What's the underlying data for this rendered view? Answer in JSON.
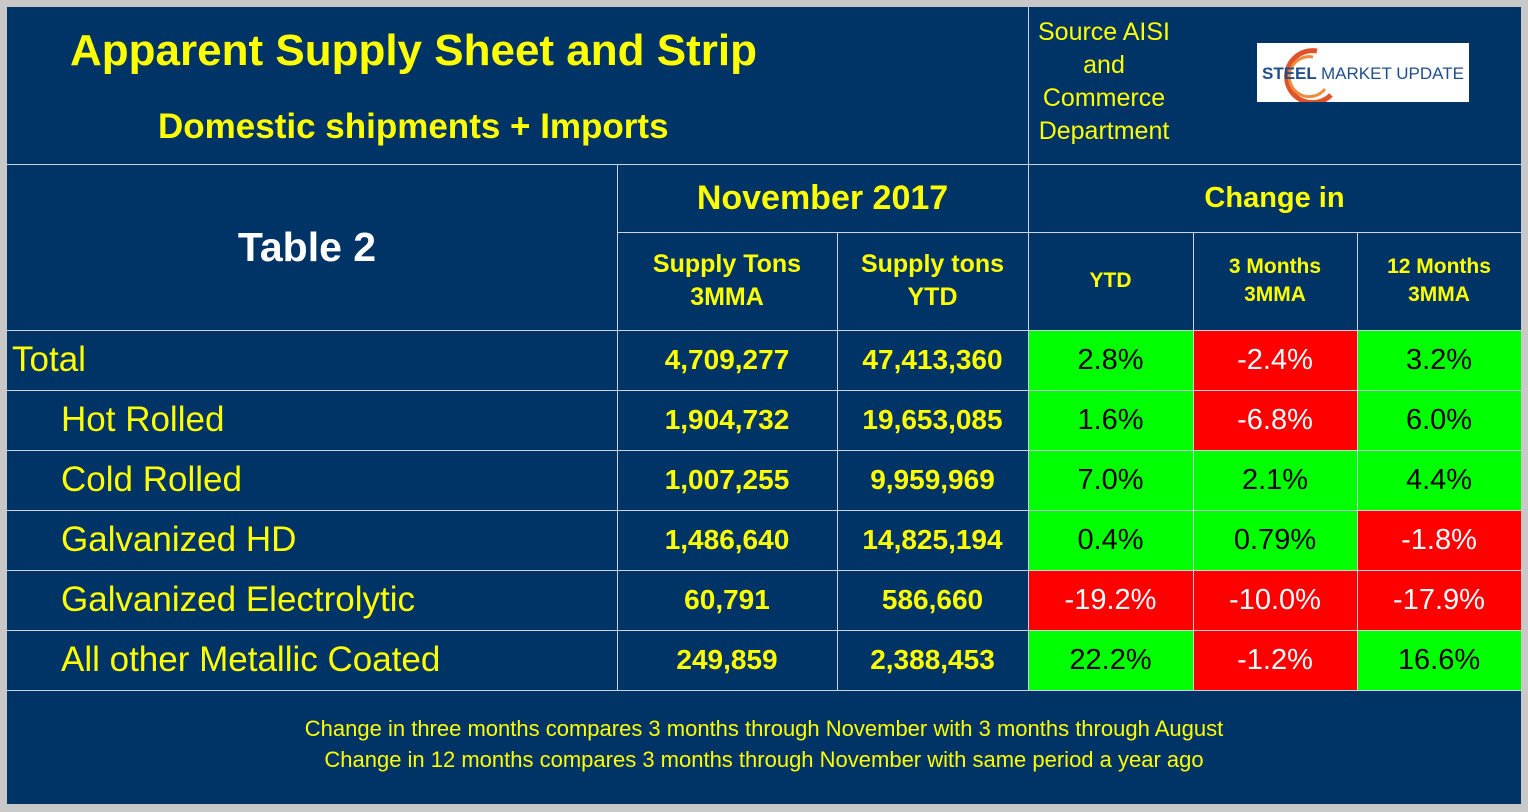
{
  "header": {
    "title": "Apparent Supply Sheet and Strip",
    "subtitle": "Domestic shipments + Imports",
    "source_lines": [
      "Source AISI",
      "and",
      "Commerce",
      "Department"
    ],
    "logo_text_bold": "STEEL",
    "logo_text": "MARKET UPDATE"
  },
  "chart_data": {
    "type": "table",
    "table_label": "Table 2",
    "period_header": "November 2017",
    "change_header": "Change in",
    "columns": [
      {
        "label_line1": "Supply Tons",
        "label_line2": "3MMA"
      },
      {
        "label_line1": "Supply tons",
        "label_line2": "YTD"
      },
      {
        "label_line1": "YTD",
        "label_line2": ""
      },
      {
        "label_line1": "3 Months",
        "label_line2": "3MMA"
      },
      {
        "label_line1": "12 Months",
        "label_line2": "3MMA"
      }
    ],
    "rows": [
      {
        "label": "Total",
        "indent": false,
        "supply_3mma": "4,709,277",
        "supply_ytd": "47,413,360",
        "chg_ytd": "2.8%",
        "chg_3m": "-2.4%",
        "chg_12m": "3.2%",
        "chg_ytd_color": "green",
        "chg_3m_color": "red",
        "chg_12m_color": "green"
      },
      {
        "label": "Hot Rolled",
        "indent": true,
        "supply_3mma": "1,904,732",
        "supply_ytd": "19,653,085",
        "chg_ytd": "1.6%",
        "chg_3m": "-6.8%",
        "chg_12m": "6.0%",
        "chg_ytd_color": "green",
        "chg_3m_color": "red",
        "chg_12m_color": "green"
      },
      {
        "label": "Cold Rolled",
        "indent": true,
        "supply_3mma": "1,007,255",
        "supply_ytd": "9,959,969",
        "chg_ytd": "7.0%",
        "chg_3m": "2.1%",
        "chg_12m": "4.4%",
        "chg_ytd_color": "green",
        "chg_3m_color": "green",
        "chg_12m_color": "green"
      },
      {
        "label": "Galvanized HD",
        "indent": true,
        "supply_3mma": "1,486,640",
        "supply_ytd": "14,825,194",
        "chg_ytd": "0.4%",
        "chg_3m": "0.79%",
        "chg_12m": "-1.8%",
        "chg_ytd_color": "green",
        "chg_3m_color": "green",
        "chg_12m_color": "red"
      },
      {
        "label": "Galvanized Electrolytic",
        "indent": true,
        "supply_3mma": "60,791",
        "supply_ytd": "586,660",
        "chg_ytd": "-19.2%",
        "chg_3m": "-10.0%",
        "chg_12m": "-17.9%",
        "chg_ytd_color": "red",
        "chg_3m_color": "red",
        "chg_12m_color": "red"
      },
      {
        "label": "All other Metallic Coated",
        "indent": true,
        "supply_3mma": "249,859",
        "supply_ytd": "2,388,453",
        "chg_ytd": "22.2%",
        "chg_3m": "-1.2%",
        "chg_12m": "16.6%",
        "chg_ytd_color": "green",
        "chg_3m_color": "red",
        "chg_12m_color": "green"
      }
    ]
  },
  "footnotes": [
    "Change in three months compares 3 months through November with 3 months through August",
    "Change in 12 months compares 3 months through November with same period a year ago"
  ],
  "colors": {
    "background": "#003366",
    "text": "#ffff00",
    "positive": "#00ff00",
    "negative": "#ff0000"
  }
}
